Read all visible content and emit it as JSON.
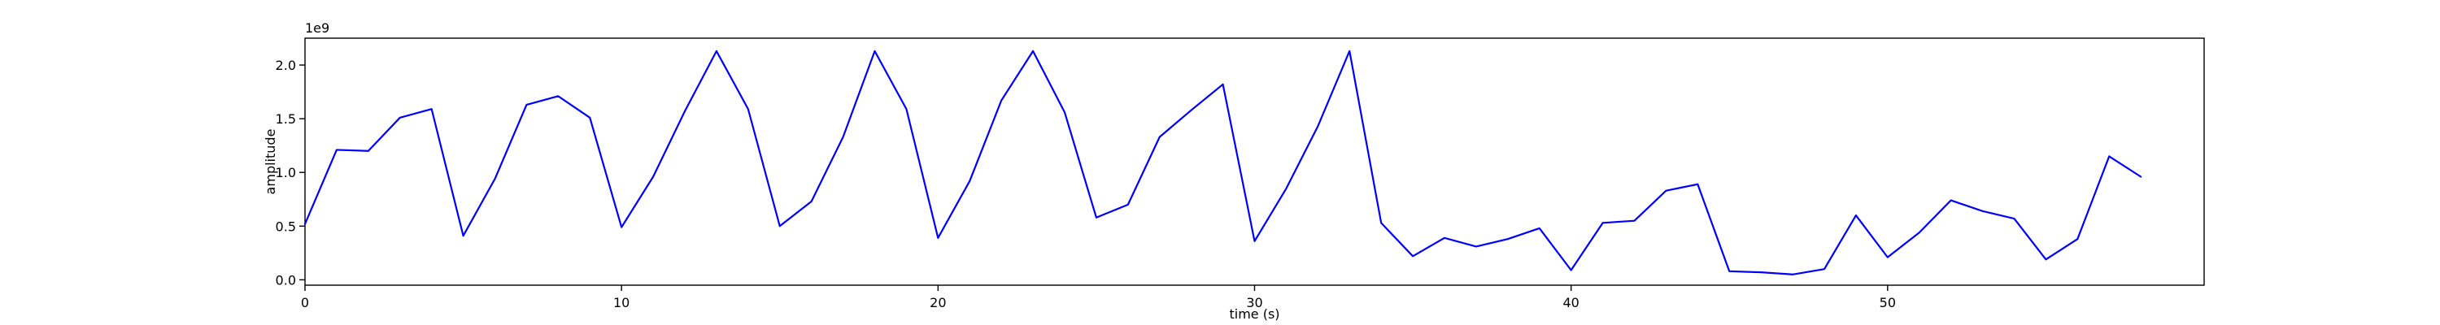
{
  "chart_data": {
    "type": "line",
    "xlabel": "time (s)",
    "ylabel": "amplitude",
    "y_multiplier_label": "1e9",
    "xlim": [
      0,
      60
    ],
    "ylim": [
      -50000000,
      2250000000
    ],
    "x_ticks": [
      0,
      10,
      20,
      30,
      40,
      50
    ],
    "x_tick_labels": [
      "0",
      "10",
      "20",
      "30",
      "40",
      "50"
    ],
    "y_ticks": [
      0,
      500000000,
      1000000000,
      1500000000,
      2000000000
    ],
    "y_tick_labels": [
      "0.0",
      "0.5",
      "1.0",
      "1.5",
      "2.0"
    ],
    "grid": false,
    "line_color": "#0000ff",
    "series": [
      {
        "x": [
          0,
          1,
          2,
          3,
          4,
          5,
          6,
          7,
          8,
          9,
          10,
          11,
          12,
          13,
          14,
          15,
          16,
          17,
          18,
          19,
          20,
          21,
          22,
          23,
          24,
          25,
          26,
          27,
          28,
          29,
          30,
          31,
          32,
          33,
          34,
          35,
          36,
          37,
          38,
          39,
          40,
          41,
          42,
          43,
          44,
          45,
          46,
          47,
          48,
          49,
          50,
          51,
          52,
          53,
          54,
          55,
          56,
          57,
          58
        ],
        "values": [
          520000000,
          1210000000,
          1200000000,
          1510000000,
          1590000000,
          410000000,
          940000000,
          1630000000,
          1710000000,
          1510000000,
          490000000,
          960000000,
          1570000000,
          2130000000,
          1590000000,
          500000000,
          730000000,
          1330000000,
          2130000000,
          1590000000,
          390000000,
          920000000,
          1670000000,
          2130000000,
          1560000000,
          580000000,
          700000000,
          1330000000,
          1580000000,
          1820000000,
          360000000,
          850000000,
          1430000000,
          2130000000,
          530000000,
          220000000,
          390000000,
          310000000,
          380000000,
          480000000,
          90000000,
          530000000,
          550000000,
          830000000,
          890000000,
          80000000,
          70000000,
          50000000,
          100000000,
          600000000,
          210000000,
          440000000,
          740000000,
          640000000,
          570000000,
          190000000,
          380000000,
          1150000000,
          960000000
        ]
      }
    ]
  }
}
